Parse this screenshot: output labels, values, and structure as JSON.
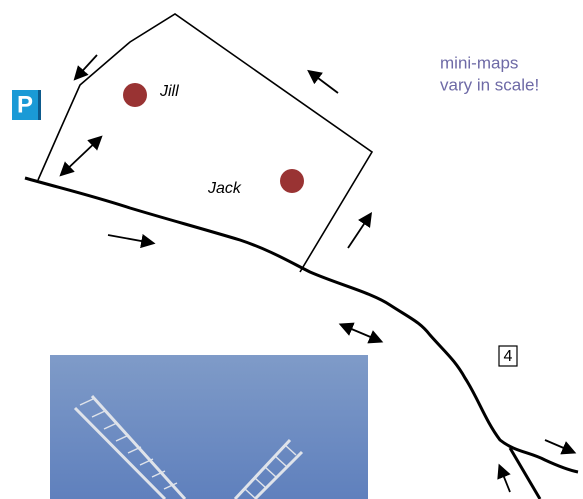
{
  "note": [
    "mini-maps",
    "vary in scale!"
  ],
  "people": [
    "Jill",
    "Jack"
  ],
  "parking": "P",
  "marker": "4"
}
